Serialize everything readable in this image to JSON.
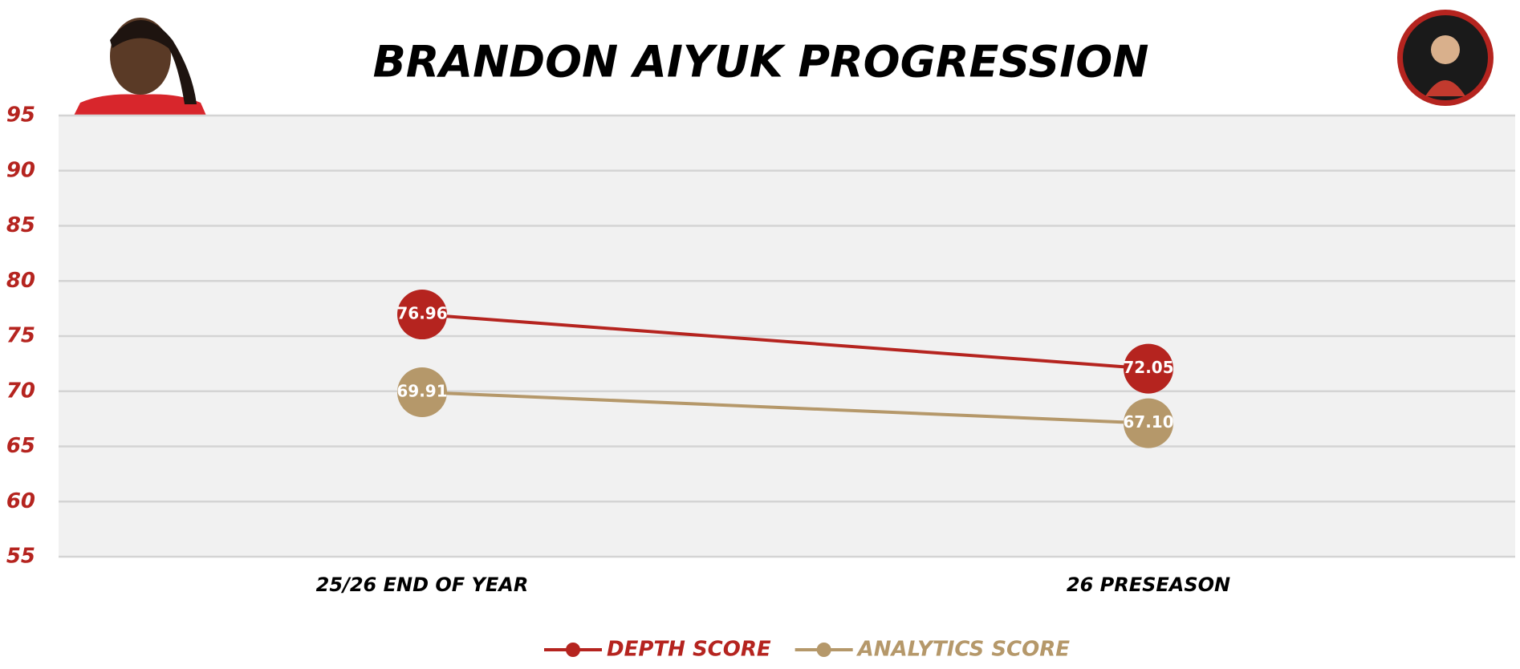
{
  "chart_data": {
    "type": "line",
    "title": "BRANDON AIYUK PROGRESSION",
    "categories": [
      "25/26 END OF YEAR",
      "26 PRESEASON"
    ],
    "series": [
      {
        "name": "DEPTH SCORE",
        "color": "#b5241f",
        "values": [
          76.96,
          72.05
        ]
      },
      {
        "name": "ANALYTICS SCORE",
        "color": "#b5986a",
        "values": [
          69.91,
          67.1
        ],
        "value_labels": [
          "69.91",
          "67.10"
        ]
      }
    ],
    "ylim": [
      55,
      95
    ],
    "yticks": [
      55,
      60,
      65,
      70,
      75,
      80,
      85,
      90,
      95
    ],
    "grid": true,
    "legend": "bottom"
  }
}
